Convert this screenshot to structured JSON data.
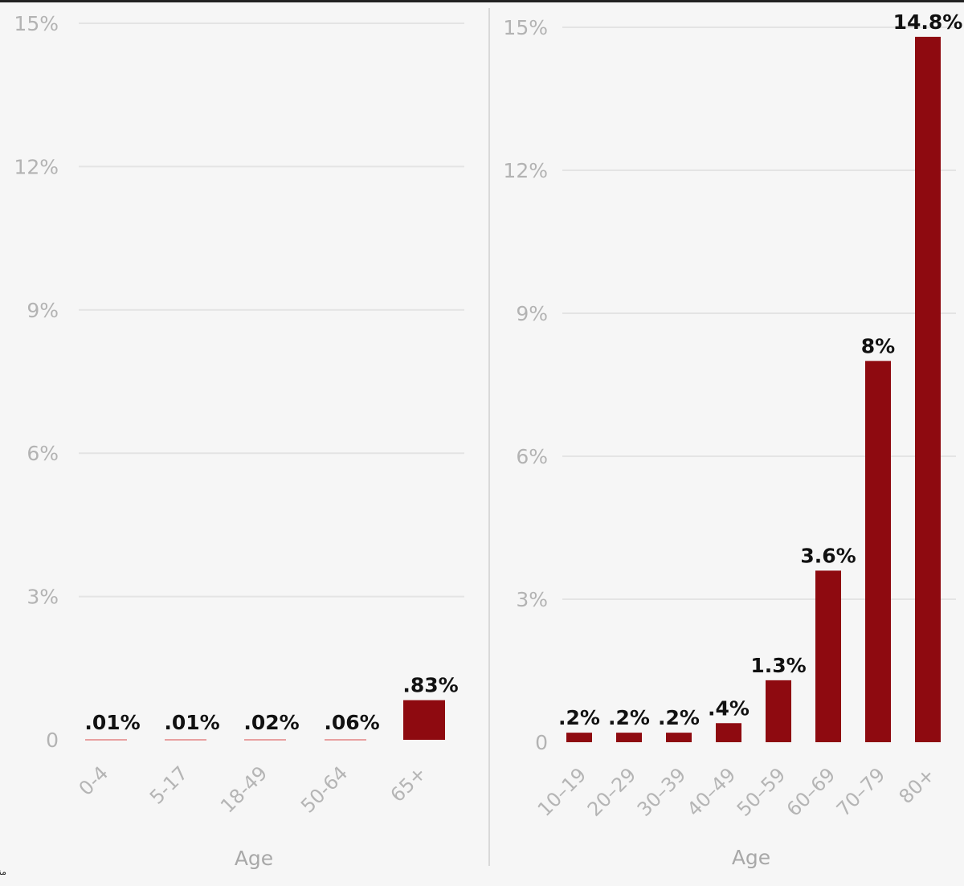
{
  "colors": {
    "bar": "#8e0a10",
    "near_zero_bar": "#e8a0a0",
    "background": "#f6f6f6",
    "divider": "#d9d9d9"
  },
  "source_note": "منبع: CDC",
  "chart_data": [
    {
      "type": "bar",
      "categories": [
        "0-4",
        "5-17",
        "18-49",
        "50-64",
        "65+"
      ],
      "values": [
        0.01,
        0.01,
        0.02,
        0.06,
        0.83
      ],
      "value_labels": [
        ".01%",
        ".01%",
        ".02%",
        ".06%",
        ".83%"
      ],
      "xlabel": "Age",
      "ylabel": "",
      "ylim": [
        0,
        15
      ],
      "ytick_values": [
        0,
        3,
        6,
        9,
        12,
        15
      ],
      "ytick_labels": [
        "0",
        "3%",
        "6%",
        "9%",
        "12%",
        "15%"
      ],
      "grid": true
    },
    {
      "type": "bar",
      "categories": [
        "10–19",
        "20–29",
        "30–39",
        "40–49",
        "50–59",
        "60–69",
        "70–79",
        "80+"
      ],
      "values": [
        0.2,
        0.2,
        0.2,
        0.4,
        1.3,
        3.6,
        8,
        14.8
      ],
      "value_labels": [
        ".2%",
        ".2%",
        ".2%",
        ".4%",
        "1.3%",
        "3.6%",
        "8%",
        "14.8%"
      ],
      "xlabel": "Age",
      "ylabel": "",
      "ylim": [
        0,
        15
      ],
      "ytick_values": [
        0,
        3,
        6,
        9,
        12,
        15
      ],
      "ytick_labels": [
        "0",
        "3%",
        "6%",
        "9%",
        "12%",
        "15%"
      ],
      "grid": true
    }
  ]
}
